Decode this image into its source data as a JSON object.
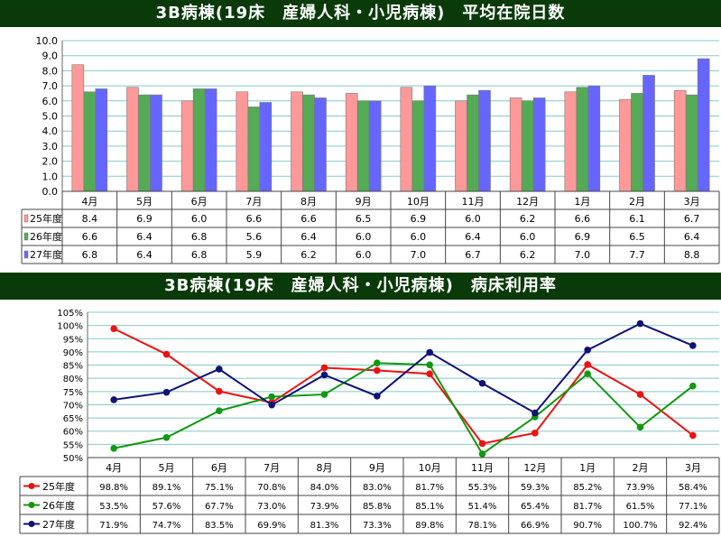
{
  "charts": {
    "stay": {
      "title": "3B病棟(19床　産婦人科・小児病棟)　平均在院日数"
    },
    "occupancy": {
      "title": "3B病棟(19床　産婦人科・小児病棟)　病床利用率"
    }
  },
  "chart_data": [
    {
      "type": "bar",
      "title": "3B病棟(19床　産婦人科・小児病棟)　平均在院日数",
      "categories": [
        "4月",
        "5月",
        "6月",
        "7月",
        "8月",
        "9月",
        "10月",
        "11月",
        "12月",
        "1月",
        "2月",
        "3月"
      ],
      "ylim": [
        0,
        10
      ],
      "yticks": [
        "0.0",
        "1.0",
        "2.0",
        "3.0",
        "4.0",
        "5.0",
        "6.0",
        "7.0",
        "8.0",
        "9.0",
        "10.0"
      ],
      "grid": true,
      "series": [
        {
          "name": "25年度",
          "color": "#ff9999",
          "values": [
            8.4,
            6.9,
            6.0,
            6.6,
            6.6,
            6.5,
            6.9,
            6.0,
            6.2,
            6.6,
            6.1,
            6.7
          ],
          "labels": [
            "8.4",
            "6.9",
            "6.0",
            "6.6",
            "6.6",
            "6.5",
            "6.9",
            "6.0",
            "6.2",
            "6.6",
            "6.1",
            "6.7"
          ]
        },
        {
          "name": "26年度",
          "color": "#55aa55",
          "values": [
            6.6,
            6.4,
            6.8,
            5.6,
            6.4,
            6.0,
            6.0,
            6.4,
            6.0,
            6.9,
            6.5,
            6.4
          ],
          "labels": [
            "6.6",
            "6.4",
            "6.8",
            "5.6",
            "6.4",
            "6.0",
            "6.0",
            "6.4",
            "6.0",
            "6.9",
            "6.5",
            "6.4"
          ]
        },
        {
          "name": "27年度",
          "color": "#6666ff",
          "values": [
            6.8,
            6.4,
            6.8,
            5.9,
            6.2,
            6.0,
            7.0,
            6.7,
            6.2,
            7.0,
            7.7,
            8.8
          ],
          "labels": [
            "6.8",
            "6.4",
            "6.8",
            "5.9",
            "6.2",
            "6.0",
            "7.0",
            "6.7",
            "6.2",
            "7.0",
            "7.7",
            "8.8"
          ]
        }
      ]
    },
    {
      "type": "line",
      "title": "3B病棟(19床　産婦人科・小児病棟)　病床利用率",
      "categories": [
        "4月",
        "5月",
        "6月",
        "7月",
        "8月",
        "9月",
        "10月",
        "11月",
        "12月",
        "1月",
        "2月",
        "3月"
      ],
      "ylim": [
        50,
        105
      ],
      "yticks": [
        "50%",
        "55%",
        "60%",
        "65%",
        "70%",
        "75%",
        "80%",
        "85%",
        "90%",
        "95%",
        "100%",
        "105%"
      ],
      "grid": true,
      "series": [
        {
          "name": "25年度",
          "color": "#ee1111",
          "values": [
            98.8,
            89.1,
            75.1,
            70.8,
            84.0,
            83.0,
            81.7,
            55.3,
            59.3,
            85.2,
            73.9,
            58.4
          ],
          "labels": [
            "98.8%",
            "89.1%",
            "75.1%",
            "70.8%",
            "84.0%",
            "83.0%",
            "81.7%",
            "55.3%",
            "59.3%",
            "85.2%",
            "73.9%",
            "58.4%"
          ]
        },
        {
          "name": "26年度",
          "color": "#119911",
          "values": [
            53.5,
            57.6,
            67.7,
            73.0,
            73.9,
            85.8,
            85.1,
            51.4,
            65.4,
            81.7,
            61.5,
            77.1
          ],
          "labels": [
            "53.5%",
            "57.6%",
            "67.7%",
            "73.0%",
            "73.9%",
            "85.8%",
            "85.1%",
            "51.4%",
            "65.4%",
            "81.7%",
            "61.5%",
            "77.1%"
          ]
        },
        {
          "name": "27年度",
          "color": "#111177",
          "values": [
            71.9,
            74.7,
            83.5,
            69.9,
            81.3,
            73.3,
            89.8,
            78.1,
            66.9,
            90.7,
            100.7,
            92.4
          ],
          "labels": [
            "71.9%",
            "74.7%",
            "83.5%",
            "69.9%",
            "81.3%",
            "73.3%",
            "89.8%",
            "78.1%",
            "66.9%",
            "90.7%",
            "100.7%",
            "92.4%"
          ]
        }
      ]
    }
  ]
}
